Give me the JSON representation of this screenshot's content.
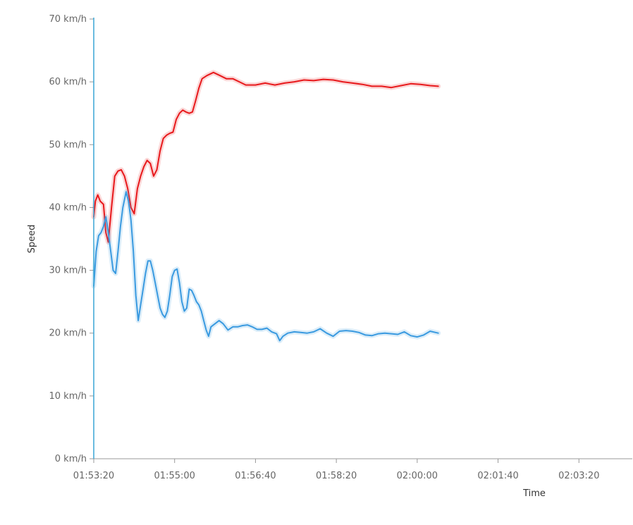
{
  "chart_data": {
    "type": "line",
    "xlabel": "Time",
    "ylabel": "Speed",
    "ylim": [
      0,
      70
    ],
    "xlim": [
      "01:53:20",
      "02:04:26"
    ],
    "grid": false,
    "x_ticks": [
      "01:53:20",
      "01:55:00",
      "01:56:40",
      "01:58:20",
      "02:00:00",
      "02:01:40",
      "02:03:20"
    ],
    "y_ticks": [
      "0 km/h",
      "10 km/h",
      "20 km/h",
      "30 km/h",
      "40 km/h",
      "50 km/h",
      "60 km/h",
      "70 km/h"
    ],
    "series": [
      {
        "color": "#e8191c",
        "points": [
          [
            "01:53:20",
            38.5
          ],
          [
            "01:53:22",
            41
          ],
          [
            "01:53:25",
            42
          ],
          [
            "01:53:28",
            41
          ],
          [
            "01:53:32",
            40.5
          ],
          [
            "01:53:35",
            36
          ],
          [
            "01:53:38",
            34.5
          ],
          [
            "01:53:42",
            40
          ],
          [
            "01:53:46",
            45
          ],
          [
            "01:53:50",
            45.8
          ],
          [
            "01:53:54",
            46
          ],
          [
            "01:53:58",
            45
          ],
          [
            "01:54:02",
            43
          ],
          [
            "01:54:06",
            40
          ],
          [
            "01:54:10",
            39
          ],
          [
            "01:54:14",
            43
          ],
          [
            "01:54:18",
            45
          ],
          [
            "01:54:22",
            46.5
          ],
          [
            "01:54:26",
            47.5
          ],
          [
            "01:54:30",
            47
          ],
          [
            "01:54:34",
            45
          ],
          [
            "01:54:38",
            46
          ],
          [
            "01:54:42",
            49
          ],
          [
            "01:54:46",
            51
          ],
          [
            "01:54:50",
            51.5
          ],
          [
            "01:54:54",
            51.8
          ],
          [
            "01:54:58",
            52
          ],
          [
            "01:55:02",
            54
          ],
          [
            "01:55:06",
            55
          ],
          [
            "01:55:10",
            55.5
          ],
          [
            "01:55:14",
            55.2
          ],
          [
            "01:55:18",
            55
          ],
          [
            "01:55:22",
            55.2
          ],
          [
            "01:55:26",
            57
          ],
          [
            "01:55:30",
            59
          ],
          [
            "01:55:34",
            60.5
          ],
          [
            "01:55:40",
            61
          ],
          [
            "01:55:48",
            61.5
          ],
          [
            "01:55:56",
            61
          ],
          [
            "01:56:04",
            60.5
          ],
          [
            "01:56:12",
            60.5
          ],
          [
            "01:56:20",
            60
          ],
          [
            "01:56:28",
            59.5
          ],
          [
            "01:56:40",
            59.5
          ],
          [
            "01:56:52",
            59.8
          ],
          [
            "01:57:04",
            59.5
          ],
          [
            "01:57:16",
            59.8
          ],
          [
            "01:57:28",
            60
          ],
          [
            "01:57:40",
            60.3
          ],
          [
            "01:57:52",
            60.2
          ],
          [
            "01:58:04",
            60.4
          ],
          [
            "01:58:16",
            60.3
          ],
          [
            "01:58:28",
            60
          ],
          [
            "01:58:40",
            59.8
          ],
          [
            "01:58:52",
            59.6
          ],
          [
            "01:59:04",
            59.3
          ],
          [
            "01:59:16",
            59.3
          ],
          [
            "01:59:28",
            59.1
          ],
          [
            "01:59:40",
            59.4
          ],
          [
            "01:59:52",
            59.7
          ],
          [
            "02:00:04",
            59.6
          ],
          [
            "02:00:16",
            59.4
          ],
          [
            "02:00:26",
            59.3
          ]
        ]
      },
      {
        "color": "#3a9ae0",
        "points": [
          [
            "01:53:20",
            27.5
          ],
          [
            "01:53:23",
            33
          ],
          [
            "01:53:26",
            35.5
          ],
          [
            "01:53:29",
            36
          ],
          [
            "01:53:32",
            37
          ],
          [
            "01:53:35",
            38.5
          ],
          [
            "01:53:38",
            36
          ],
          [
            "01:53:41",
            33
          ],
          [
            "01:53:44",
            30
          ],
          [
            "01:53:47",
            29.5
          ],
          [
            "01:53:50",
            33
          ],
          [
            "01:53:53",
            37
          ],
          [
            "01:53:56",
            40
          ],
          [
            "01:54:00",
            42.5
          ],
          [
            "01:54:03",
            41
          ],
          [
            "01:54:06",
            38
          ],
          [
            "01:54:09",
            33
          ],
          [
            "01:54:12",
            26
          ],
          [
            "01:54:15",
            22
          ],
          [
            "01:54:18",
            24.5
          ],
          [
            "01:54:21",
            27
          ],
          [
            "01:54:24",
            29.5
          ],
          [
            "01:54:27",
            31.5
          ],
          [
            "01:54:30",
            31.5
          ],
          [
            "01:54:33",
            30
          ],
          [
            "01:54:36",
            28
          ],
          [
            "01:54:39",
            26
          ],
          [
            "01:54:42",
            24
          ],
          [
            "01:54:45",
            23
          ],
          [
            "01:54:48",
            22.5
          ],
          [
            "01:54:51",
            23.5
          ],
          [
            "01:54:54",
            26
          ],
          [
            "01:54:57",
            29
          ],
          [
            "01:55:00",
            30
          ],
          [
            "01:55:03",
            30.2
          ],
          [
            "01:55:06",
            28
          ],
          [
            "01:55:09",
            25
          ],
          [
            "01:55:12",
            23.5
          ],
          [
            "01:55:15",
            24
          ],
          [
            "01:55:18",
            27
          ],
          [
            "01:55:21",
            26.8
          ],
          [
            "01:55:24",
            26
          ],
          [
            "01:55:27",
            25
          ],
          [
            "01:55:30",
            24.5
          ],
          [
            "01:55:33",
            23.5
          ],
          [
            "01:55:36",
            22
          ],
          [
            "01:55:39",
            20.5
          ],
          [
            "01:55:42",
            19.5
          ],
          [
            "01:55:45",
            21
          ],
          [
            "01:55:50",
            21.5
          ],
          [
            "01:55:55",
            22
          ],
          [
            "01:56:00",
            21.5
          ],
          [
            "01:56:06",
            20.5
          ],
          [
            "01:56:12",
            21
          ],
          [
            "01:56:18",
            21
          ],
          [
            "01:56:24",
            21.2
          ],
          [
            "01:56:30",
            21.3
          ],
          [
            "01:56:36",
            21
          ],
          [
            "01:56:42",
            20.6
          ],
          [
            "01:56:48",
            20.6
          ],
          [
            "01:56:54",
            20.8
          ],
          [
            "01:57:00",
            20.2
          ],
          [
            "01:57:06",
            19.9
          ],
          [
            "01:57:10",
            18.8
          ],
          [
            "01:57:14",
            19.5
          ],
          [
            "01:57:20",
            20
          ],
          [
            "01:57:28",
            20.2
          ],
          [
            "01:57:36",
            20.1
          ],
          [
            "01:57:44",
            20
          ],
          [
            "01:57:52",
            20.2
          ],
          [
            "01:58:00",
            20.7
          ],
          [
            "01:58:08",
            20
          ],
          [
            "01:58:16",
            19.5
          ],
          [
            "01:58:24",
            20.3
          ],
          [
            "01:58:32",
            20.4
          ],
          [
            "01:58:40",
            20.3
          ],
          [
            "01:58:48",
            20.1
          ],
          [
            "01:58:56",
            19.7
          ],
          [
            "01:59:04",
            19.6
          ],
          [
            "01:59:12",
            19.9
          ],
          [
            "01:59:20",
            20
          ],
          [
            "01:59:28",
            19.9
          ],
          [
            "01:59:36",
            19.8
          ],
          [
            "01:59:44",
            20.2
          ],
          [
            "01:59:52",
            19.6
          ],
          [
            "02:00:00",
            19.4
          ],
          [
            "02:00:08",
            19.7
          ],
          [
            "02:00:16",
            20.3
          ],
          [
            "02:00:26",
            20
          ]
        ]
      }
    ]
  }
}
